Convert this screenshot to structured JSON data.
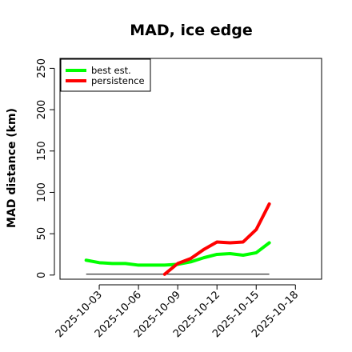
{
  "chart_data": {
    "type": "line",
    "title": "MAD, ice edge",
    "xlabel": "",
    "ylabel": "MAD distance (km)",
    "ylim": [
      -5,
      262
    ],
    "xlim": [
      "2025-10-00",
      "2025-10-20"
    ],
    "x_ticks": [
      "2025-10-03",
      "2025-10-06",
      "2025-10-09",
      "2025-10-12",
      "2025-10-15",
      "2025-10-18"
    ],
    "y_ticks": [
      0,
      50,
      100,
      150,
      200,
      250
    ],
    "grid": false,
    "legend_position": "top-left",
    "series": [
      {
        "name": "best est.",
        "color": "#00ff00",
        "x": [
          "2025-10-02",
          "2025-10-03",
          "2025-10-04",
          "2025-10-05",
          "2025-10-06",
          "2025-10-07",
          "2025-10-08",
          "2025-10-09",
          "2025-10-10",
          "2025-10-11",
          "2025-10-12",
          "2025-10-13",
          "2025-10-14",
          "2025-10-15",
          "2025-10-16"
        ],
        "values": [
          18,
          15,
          14,
          14,
          12,
          12,
          12,
          13,
          16,
          21,
          25,
          26,
          24,
          27,
          39
        ]
      },
      {
        "name": "persistence",
        "color": "#ff0000",
        "x": [
          "2025-10-08",
          "2025-10-09",
          "2025-10-10",
          "2025-10-11",
          "2025-10-12",
          "2025-10-13",
          "2025-10-14",
          "2025-10-15",
          "2025-10-16"
        ],
        "values": [
          1,
          14,
          20,
          31,
          40,
          39,
          40,
          55,
          86
        ]
      }
    ],
    "reference_line": {
      "color": "#000000",
      "x": [
        "2025-10-02",
        "2025-10-16"
      ],
      "values": [
        1,
        1
      ]
    }
  }
}
